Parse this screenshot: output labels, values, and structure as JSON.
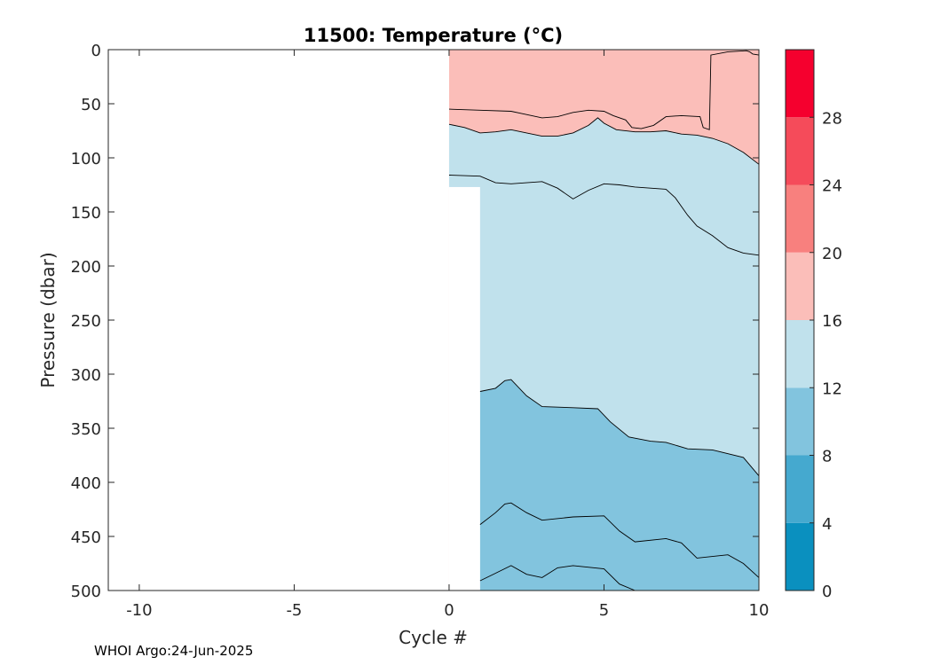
{
  "chart_data": {
    "type": "contour",
    "title": "11500:  Temperature (°C)",
    "xlabel": "Cycle #",
    "ylabel": "Pressure (dbar)",
    "xlim": [
      -11,
      10
    ],
    "ylim": [
      0,
      500
    ],
    "y_reversed": true,
    "xticks": [
      -10,
      -5,
      0,
      5,
      10
    ],
    "yticks": [
      0,
      50,
      100,
      150,
      200,
      250,
      300,
      350,
      400,
      450,
      500
    ],
    "colorbar": {
      "ticks": [
        0,
        4,
        8,
        12,
        16,
        20,
        24,
        28
      ],
      "range": [
        0,
        32
      ],
      "bins": [
        {
          "from": 0,
          "to": 4,
          "color": "#0a90bf"
        },
        {
          "from": 4,
          "to": 8,
          "color": "#45a9cf"
        },
        {
          "from": 8,
          "to": 12,
          "color": "#82c4de"
        },
        {
          "from": 12,
          "to": 16,
          "color": "#c0e1ec"
        },
        {
          "from": 16,
          "to": 20,
          "color": "#fbbeb9"
        },
        {
          "from": 20,
          "to": 24,
          "color": "#f8807e"
        },
        {
          "from": 24,
          "to": 28,
          "color": "#f54b5a"
        },
        {
          "from": 28,
          "to": 32,
          "color": "#f5002e"
        }
      ]
    },
    "data_extent": {
      "cycle_min": 0,
      "cycle_max": 10
    },
    "contours": [
      {
        "level": 16,
        "points": [
          [
            0,
            55
          ],
          [
            1,
            56
          ],
          [
            2,
            57
          ],
          [
            2.5,
            60
          ],
          [
            3,
            63
          ],
          [
            3.5,
            62
          ],
          [
            4,
            58
          ],
          [
            4.5,
            56
          ],
          [
            5,
            57
          ],
          [
            5.3,
            61
          ],
          [
            5.7,
            65
          ],
          [
            5.9,
            72
          ],
          [
            6.2,
            73
          ],
          [
            6.6,
            70
          ],
          [
            7,
            62
          ],
          [
            7.5,
            61
          ],
          [
            8.1,
            62
          ],
          [
            8.2,
            72
          ],
          [
            8.4,
            74
          ],
          [
            8.45,
            5
          ],
          [
            9,
            2
          ],
          [
            9.6,
            1
          ],
          [
            9.7,
            2
          ],
          [
            9.8,
            4
          ],
          [
            10,
            5
          ]
        ]
      },
      {
        "level": 12,
        "points": [
          [
            0,
            69
          ],
          [
            0.5,
            72
          ],
          [
            1,
            77
          ],
          [
            1.5,
            76
          ],
          [
            2,
            74
          ],
          [
            2.5,
            77
          ],
          [
            3,
            80
          ],
          [
            3.5,
            80
          ],
          [
            4,
            77
          ],
          [
            4.5,
            70
          ],
          [
            4.8,
            63
          ],
          [
            5,
            68
          ],
          [
            5.4,
            74
          ],
          [
            6,
            76
          ],
          [
            6.5,
            76
          ],
          [
            7,
            75
          ],
          [
            7.5,
            78
          ],
          [
            8,
            79
          ],
          [
            8.5,
            82
          ],
          [
            9,
            87
          ],
          [
            9.5,
            95
          ],
          [
            10,
            106
          ]
        ]
      },
      {
        "level": 12,
        "points": [
          [
            0,
            116
          ],
          [
            1,
            117
          ],
          [
            1.5,
            123
          ],
          [
            2,
            124
          ],
          [
            3,
            122
          ],
          [
            3.5,
            128
          ],
          [
            4,
            138
          ],
          [
            4.5,
            130
          ],
          [
            5,
            124
          ],
          [
            5.5,
            125
          ],
          [
            6,
            127
          ],
          [
            7,
            129
          ],
          [
            7.3,
            137
          ],
          [
            7.7,
            153
          ],
          [
            8,
            163
          ],
          [
            8.5,
            172
          ],
          [
            9,
            183
          ],
          [
            9.5,
            188
          ],
          [
            10,
            190
          ]
        ]
      },
      {
        "level": 8,
        "points": [
          [
            1,
            316
          ],
          [
            1.5,
            313
          ],
          [
            1.8,
            306
          ],
          [
            2,
            305
          ],
          [
            2.5,
            320
          ],
          [
            3,
            330
          ],
          [
            4,
            331
          ],
          [
            4.8,
            332
          ],
          [
            5.2,
            344
          ],
          [
            5.8,
            358
          ],
          [
            6.5,
            362
          ],
          [
            7,
            363
          ],
          [
            7.7,
            369
          ],
          [
            8.5,
            370
          ],
          [
            9.5,
            377
          ],
          [
            10,
            394
          ]
        ]
      },
      {
        "level": 4,
        "points": [
          [
            1,
            439
          ],
          [
            1.5,
            428
          ],
          [
            1.8,
            420
          ],
          [
            2,
            419
          ],
          [
            2.5,
            428
          ],
          [
            3,
            435
          ],
          [
            4,
            432
          ],
          [
            5,
            431
          ],
          [
            5.5,
            445
          ],
          [
            6,
            455
          ],
          [
            7,
            452
          ],
          [
            7.5,
            456
          ],
          [
            8,
            470
          ],
          [
            9,
            467
          ],
          [
            9.5,
            475
          ],
          [
            10,
            488
          ]
        ]
      },
      {
        "level": 0,
        "points": [
          [
            1,
            491
          ],
          [
            1.5,
            484
          ],
          [
            2,
            477
          ],
          [
            2.5,
            485
          ],
          [
            3,
            488
          ],
          [
            3.5,
            479
          ],
          [
            4,
            477
          ],
          [
            5,
            480
          ],
          [
            5.5,
            494
          ],
          [
            6,
            500
          ]
        ]
      }
    ],
    "contour_line_levels": [
      16,
      12,
      12,
      8,
      4,
      0
    ]
  },
  "footer": "WHOI Argo:24-Jun-2025"
}
